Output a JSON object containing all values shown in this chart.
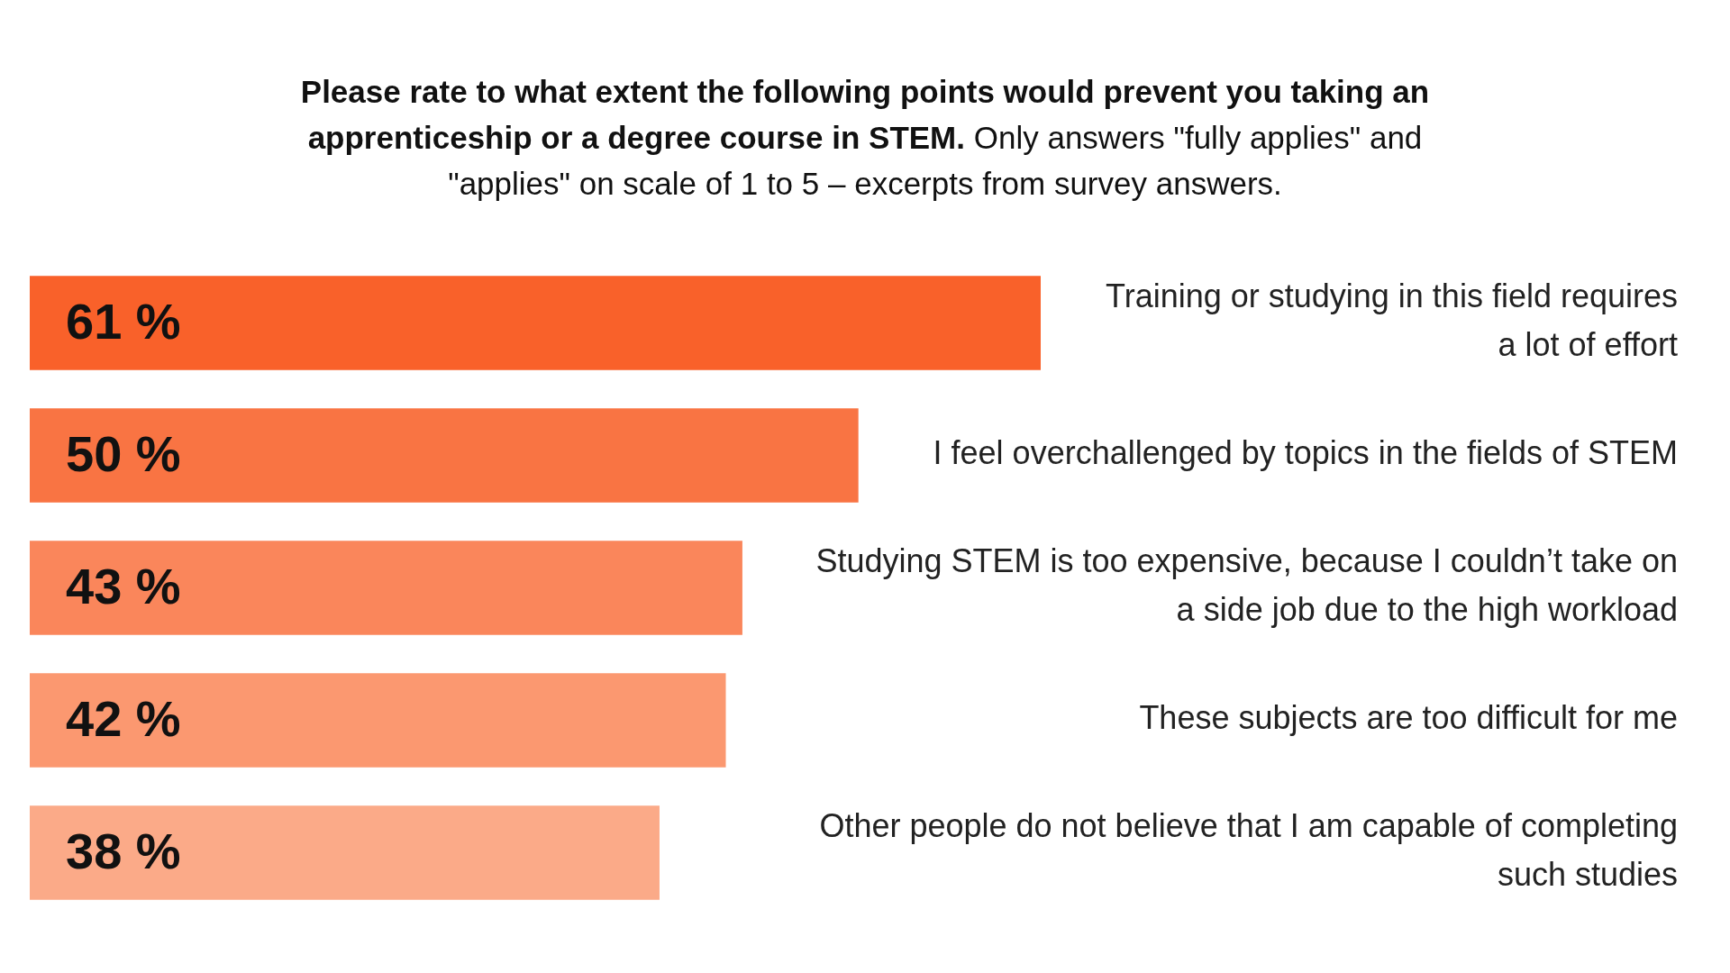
{
  "chart_data": {
    "type": "bar",
    "orientation": "horizontal",
    "title": "Please rate to what extent the following points would prevent you taking an apprenticeship or a degree course in STEM.",
    "subtitle": "Only answers \"fully applies\" and \"applies\" on scale of 1 to 5 – excerpts from survey answers.",
    "categories": [
      "Training or studying in this field requires a lot of effort",
      "I feel overchallenged by topics in the fields of STEM",
      "Studying STEM is too expensive, because I couldn’t take on a side job due to the high workload",
      "These subjects are too difficult for me",
      "Other people do not believe that I am capable of completing such studies"
    ],
    "values": [
      61,
      50,
      43,
      42,
      38
    ],
    "colors": [
      "#f9612a",
      "#f97443",
      "#fa865b",
      "#fb9870",
      "#fbaa88"
    ],
    "value_labels": [
      "61 %",
      "50 %",
      "43 %",
      "42 %",
      "38 %"
    ],
    "tick_labels": false,
    "legend": false
  }
}
